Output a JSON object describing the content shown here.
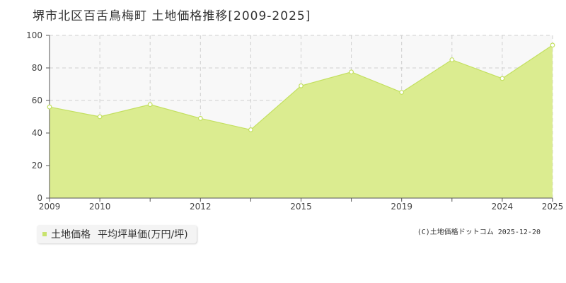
{
  "header": {
    "title": "堺市北区百舌鳥梅町 土地価格推移[2009-2025]"
  },
  "legend": {
    "label": "土地価格",
    "series_name": "平均坪単価(万円/坪)"
  },
  "credit": "(C)土地価格ドットコム 2025-12-20",
  "colors": {
    "area_fill": "#dbec90",
    "line": "#c3e060",
    "point_fill": "#ffffff",
    "grid": "#cfcfcf",
    "plot_bg": "#f8f8f8"
  },
  "chart_data": {
    "type": "area",
    "x": [
      2009,
      2010,
      2011,
      2012,
      2013,
      2015,
      2017,
      2019,
      2021,
      2024,
      2025
    ],
    "series": [
      {
        "name": "平均坪単価(万円/坪)",
        "values": [
          56,
          50,
          57.5,
          49,
          42,
          69,
          77.5,
          65,
          85,
          73.5,
          94
        ]
      }
    ],
    "x_tick_labels": [
      "2009",
      "2010",
      "",
      "2012",
      "",
      "2015",
      "",
      "2019",
      "",
      "2024",
      "2025"
    ],
    "y_ticks": [
      0,
      20,
      40,
      60,
      80,
      100
    ],
    "ylim": [
      0,
      100
    ],
    "grid": true,
    "title": "堺市北区百舌鳥梅町 土地価格推移[2009-2025]",
    "xlabel": "",
    "ylabel": ""
  }
}
